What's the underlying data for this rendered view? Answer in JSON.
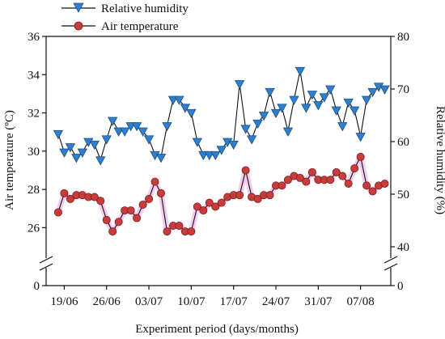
{
  "chart_data": {
    "type": "line",
    "xlabel": "Experiment period (days/months)",
    "ylabel_left": "Air temperature (ºC)",
    "ylabel_right": "Relative humidity (%)",
    "x_tick_labels": [
      "19/06",
      "26/06",
      "03/07",
      "10/07",
      "17/07",
      "24/07",
      "31/07",
      "07/08"
    ],
    "x_tick_days": [
      0,
      7,
      14,
      21,
      28,
      35,
      42,
      49
    ],
    "x_range": [
      -3,
      54
    ],
    "y_left_ticks": [
      0,
      26,
      28,
      30,
      32,
      34,
      36
    ],
    "y_left_range": [
      25,
      36
    ],
    "y_right_ticks": [
      0,
      40,
      50,
      60,
      70,
      80
    ],
    "y_right_range": [
      40,
      80
    ],
    "axis_break": true,
    "legend_position": "top-left",
    "colors": {
      "humidity": "#2f7fd0",
      "temperature": "#c83c3c",
      "line": "#111111",
      "highlight": "#f3c6ee"
    },
    "series": [
      {
        "name": "Relative humidity",
        "axis": "right",
        "marker": "triangle-down",
        "x": [
          -1,
          0,
          1,
          2,
          3,
          4,
          5,
          6,
          7,
          8,
          9,
          10,
          11,
          12,
          13,
          14,
          15,
          16,
          17,
          18,
          19,
          20,
          21,
          22,
          23,
          24,
          25,
          26,
          27,
          28,
          29,
          30,
          31,
          32,
          33,
          34,
          35,
          36,
          37,
          38,
          39,
          40,
          41,
          42,
          43,
          44,
          45,
          46,
          47,
          48,
          49,
          50,
          51,
          52,
          53
        ],
        "values": [
          61.5,
          58,
          59,
          57,
          58,
          60,
          59.5,
          56.5,
          60.5,
          64,
          62,
          62,
          63,
          63,
          62,
          60.5,
          57.5,
          57,
          63,
          68,
          68,
          66.5,
          65.5,
          60,
          57.5,
          57.5,
          57.5,
          58.5,
          60,
          59.5,
          71,
          62.5,
          60.5,
          63.5,
          65,
          69.5,
          65.5,
          66.5,
          62,
          68,
          73.5,
          66.5,
          69,
          67,
          68.5,
          70,
          66,
          63,
          67.5,
          66,
          61,
          68,
          69.5,
          70.5,
          70
        ]
      },
      {
        "name": "Air temperature",
        "axis": "left",
        "marker": "circle",
        "x": [
          -1,
          0,
          1,
          2,
          3,
          4,
          5,
          6,
          7,
          8,
          9,
          10,
          11,
          12,
          13,
          14,
          15,
          16,
          17,
          18,
          19,
          20,
          21,
          22,
          23,
          24,
          25,
          26,
          27,
          28,
          29,
          30,
          31,
          32,
          33,
          34,
          35,
          36,
          37,
          38,
          39,
          40,
          41,
          42,
          43,
          44,
          45,
          46,
          47,
          48,
          49,
          50,
          51,
          52,
          53
        ],
        "values": [
          26.8,
          27.8,
          27.5,
          27.7,
          27.7,
          27.6,
          27.6,
          27.4,
          26.4,
          25.8,
          26.3,
          26.9,
          26.9,
          26.5,
          27.2,
          27.5,
          28.4,
          27.8,
          25.8,
          26.1,
          26.1,
          25.8,
          25.8,
          27.1,
          26.9,
          27.3,
          27.1,
          27.3,
          27.6,
          27.7,
          27.7,
          29,
          27.6,
          27.5,
          27.7,
          27.7,
          28.2,
          28.2,
          28.5,
          28.7,
          28.6,
          28.4,
          28.9,
          28.5,
          28.5,
          28.5,
          28.9,
          28.7,
          28.3,
          29.1,
          29.7,
          28.2,
          27.9,
          28.2,
          28.3
        ]
      }
    ]
  }
}
